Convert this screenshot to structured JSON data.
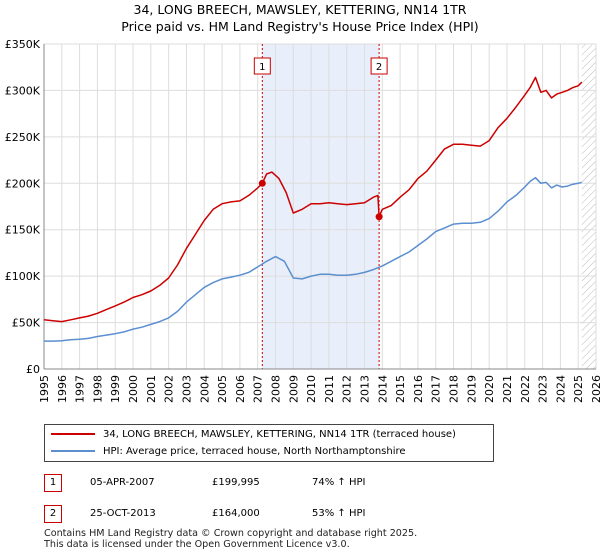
{
  "title_line1": "34, LONG BREECH, MAWSLEY, KETTERING, NN14 1TR",
  "title_line2": "Price paid vs. HM Land Registry's House Price Index (HPI)",
  "colors": {
    "red": "#cc0000",
    "blue": "#5b8fd0",
    "shade": "#e8eefa",
    "grid": "#dddddd"
  },
  "chart_data": {
    "type": "line",
    "xlabel": "",
    "ylabel": "",
    "xlim": [
      1995,
      2026
    ],
    "ylim": [
      0,
      350000
    ],
    "y_ticks": [
      0,
      50000,
      100000,
      150000,
      200000,
      250000,
      300000,
      350000
    ],
    "y_tick_labels": [
      "£0",
      "£50K",
      "£100K",
      "£150K",
      "£200K",
      "£250K",
      "£300K",
      "£350K"
    ],
    "x_ticks": [
      1995,
      1996,
      1997,
      1998,
      1999,
      2000,
      2001,
      2002,
      2003,
      2004,
      2005,
      2006,
      2007,
      2008,
      2009,
      2010,
      2011,
      2012,
      2013,
      2014,
      2015,
      2016,
      2017,
      2018,
      2019,
      2020,
      2021,
      2022,
      2023,
      2024,
      2025,
      2026
    ],
    "x_tick_labels": [
      "1995",
      "1996",
      "1997",
      "1998",
      "1999",
      "2000",
      "2001",
      "2002",
      "2003",
      "2004",
      "2005",
      "2006",
      "2007",
      "2008",
      "2009",
      "2010",
      "2011",
      "2012",
      "2013",
      "2014",
      "2015",
      "2016",
      "2017",
      "2018",
      "2019",
      "2020",
      "2021",
      "2022",
      "2023",
      "2024",
      "2025",
      "2026"
    ],
    "shaded_range": [
      2007.26,
      2013.82
    ],
    "future_hatch_from": 2025.2,
    "series": [
      {
        "name": "34, LONG BREECH, MAWSLEY, KETTERING, NN14 1TR (terraced house)",
        "color": "#cc0000",
        "x": [
          1995.0,
          1995.5,
          1996.0,
          1996.5,
          1997.0,
          1997.5,
          1998.0,
          1998.5,
          1999.0,
          1999.5,
          2000.0,
          2000.5,
          2001.0,
          2001.5,
          2002.0,
          2002.5,
          2003.0,
          2003.5,
          2004.0,
          2004.5,
          2005.0,
          2005.5,
          2006.0,
          2006.5,
          2007.0,
          2007.26,
          2007.5,
          2007.8,
          2008.2,
          2008.6,
          2009.0,
          2009.5,
          2010.0,
          2010.5,
          2011.0,
          2011.5,
          2012.0,
          2012.5,
          2013.0,
          2013.5,
          2013.75,
          2013.82,
          2014.0,
          2014.5,
          2015.0,
          2015.5,
          2016.0,
          2016.5,
          2017.0,
          2017.5,
          2018.0,
          2018.5,
          2019.0,
          2019.5,
          2020.0,
          2020.5,
          2021.0,
          2021.5,
          2022.0,
          2022.3,
          2022.6,
          2022.9,
          2023.2,
          2023.5,
          2023.8,
          2024.1,
          2024.4,
          2024.7,
          2025.0,
          2025.2
        ],
        "values": [
          53000,
          52000,
          51000,
          53000,
          55000,
          57000,
          60000,
          64000,
          68000,
          72000,
          77000,
          80000,
          84000,
          90000,
          98000,
          112000,
          130000,
          145000,
          160000,
          172000,
          178000,
          180000,
          181000,
          187000,
          195000,
          199995,
          210000,
          212000,
          205000,
          190000,
          168000,
          172000,
          178000,
          178000,
          179000,
          178000,
          177000,
          178000,
          179000,
          185000,
          187000,
          164000,
          172000,
          176000,
          185000,
          193000,
          205000,
          213000,
          225000,
          237000,
          242000,
          242000,
          241000,
          240000,
          246000,
          260000,
          270000,
          282000,
          295000,
          303000,
          314000,
          298000,
          300000,
          292000,
          296000,
          298000,
          300000,
          303000,
          305000,
          309000
        ]
      },
      {
        "name": "HPI: Average price, terraced house, North Northamptonshire",
        "color": "#5b8fd0",
        "x": [
          1995.0,
          1995.5,
          1996.0,
          1996.5,
          1997.0,
          1997.5,
          1998.0,
          1998.5,
          1999.0,
          1999.5,
          2000.0,
          2000.5,
          2001.0,
          2001.5,
          2002.0,
          2002.5,
          2003.0,
          2003.5,
          2004.0,
          2004.5,
          2005.0,
          2005.5,
          2006.0,
          2006.5,
          2007.0,
          2007.5,
          2008.0,
          2008.5,
          2009.0,
          2009.5,
          2010.0,
          2010.5,
          2011.0,
          2011.5,
          2012.0,
          2012.5,
          2013.0,
          2013.5,
          2014.0,
          2014.5,
          2015.0,
          2015.5,
          2016.0,
          2016.5,
          2017.0,
          2017.5,
          2018.0,
          2018.5,
          2019.0,
          2019.5,
          2020.0,
          2020.5,
          2021.0,
          2021.5,
          2022.0,
          2022.3,
          2022.6,
          2022.9,
          2023.2,
          2023.5,
          2023.8,
          2024.1,
          2024.4,
          2024.7,
          2025.0,
          2025.2
        ],
        "values": [
          30000,
          30000,
          30500,
          31500,
          32000,
          33000,
          35000,
          36500,
          38000,
          40000,
          43000,
          45000,
          48000,
          51000,
          55000,
          62000,
          72000,
          80000,
          88000,
          93000,
          97000,
          99000,
          101000,
          104000,
          110000,
          116000,
          121000,
          116000,
          98000,
          97000,
          100000,
          102000,
          102000,
          101000,
          101000,
          102000,
          104000,
          107000,
          111000,
          116000,
          121000,
          126000,
          133000,
          140000,
          148000,
          152000,
          156000,
          157000,
          157000,
          158000,
          162000,
          170000,
          180000,
          187000,
          196000,
          202000,
          206000,
          200000,
          201000,
          195000,
          198000,
          196000,
          197000,
          199000,
          200000,
          201000
        ]
      }
    ],
    "transactions": [
      {
        "label": "1",
        "x": 2007.26,
        "y": 199995
      },
      {
        "label": "2",
        "x": 2013.82,
        "y": 164000
      }
    ]
  },
  "legend": {
    "red_label": "34, LONG BREECH, MAWSLEY, KETTERING, NN14 1TR (terraced house)",
    "blue_label": "HPI: Average price, terraced house, North Northamptonshire"
  },
  "transactions_table": [
    {
      "num": "1",
      "date": "05-APR-2007",
      "price": "£199,995",
      "hpi": "74% ↑ HPI"
    },
    {
      "num": "2",
      "date": "25-OCT-2013",
      "price": "£164,000",
      "hpi": "53% ↑ HPI"
    }
  ],
  "footer_line1": "Contains HM Land Registry data © Crown copyright and database right 2025.",
  "footer_line2": "This data is licensed under the Open Government Licence v3.0."
}
